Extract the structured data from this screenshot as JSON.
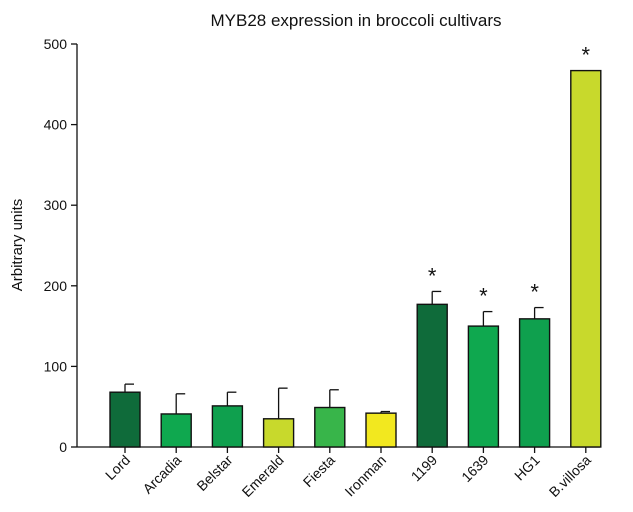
{
  "chart_data": {
    "type": "bar",
    "title": "MYB28 expression in broccoli cultivars",
    "xlabel": "",
    "ylabel": "Arbitrary units",
    "ylim": [
      0,
      500
    ],
    "yticks": [
      0,
      100,
      200,
      300,
      400,
      500
    ],
    "grid": false,
    "categories": [
      "Lord",
      "Arcadia",
      "Belstar",
      "Emerald",
      "Fiesta",
      "Ironman",
      "1199",
      "1639",
      "HG1",
      "B.villosa"
    ],
    "values": [
      68,
      41,
      51,
      35,
      49,
      42,
      177,
      150,
      159,
      467
    ],
    "error": [
      10,
      25,
      17,
      38,
      22,
      2,
      16,
      18,
      14,
      null
    ],
    "significance": [
      "",
      "",
      "",
      "",
      "",
      "",
      "*",
      "*",
      "*",
      "*"
    ],
    "colors": [
      "#0f6b3a",
      "#0fa84f",
      "#0fa04e",
      "#c8d92c",
      "#38b54a",
      "#f2e81f",
      "#0f6b3a",
      "#0fa84f",
      "#0fa04e",
      "#c8d92c"
    ]
  }
}
